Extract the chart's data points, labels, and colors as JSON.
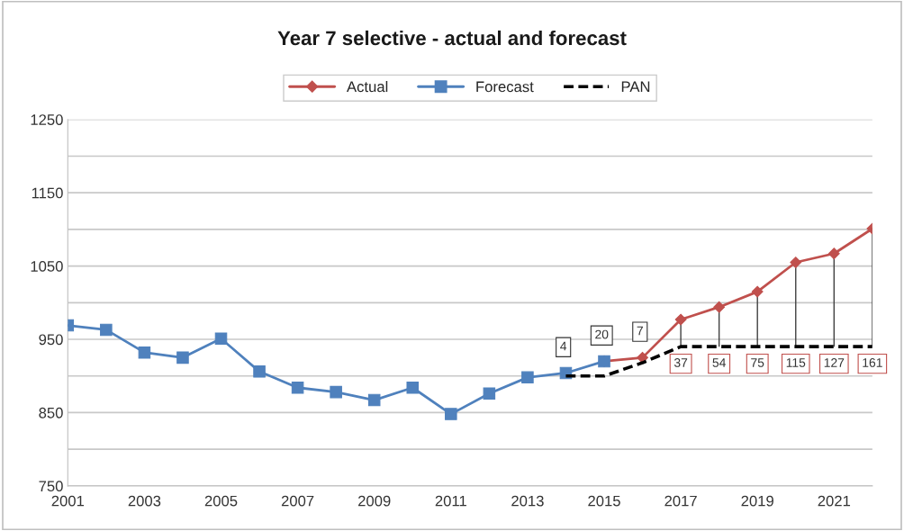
{
  "chart_data": {
    "type": "line",
    "title": "Year 7 selective - actual and forecast",
    "xlim": [
      2001,
      2022
    ],
    "xticks": [
      2001,
      2003,
      2005,
      2007,
      2009,
      2011,
      2013,
      2015,
      2017,
      2019,
      2021
    ],
    "ylim": [
      750,
      1250
    ],
    "yticks": [
      750,
      {
        "value": 800,
        "label": null
      },
      850,
      {
        "value": 900,
        "label": null
      },
      950,
      {
        "value": 1000,
        "label": null
      },
      1050,
      {
        "value": 1100,
        "label": null
      },
      1150,
      {
        "value": 1200,
        "label": null
      },
      1250
    ],
    "grid": "y",
    "legend": "top",
    "series": [
      {
        "name": "Actual",
        "color": "#c0504d",
        "marker": "diamond",
        "line_style": "solid",
        "x": [
          2015,
          2016,
          2017,
          2018,
          2019,
          2020,
          2021,
          2022
        ],
        "values": [
          920,
          925,
          977,
          994,
          1015,
          1055,
          1067,
          1101
        ],
        "errors": [
          null,
          null,
          [
            940,
            977
          ],
          [
            940,
            994
          ],
          [
            940,
            1015
          ],
          [
            940,
            1055
          ],
          [
            940,
            1067
          ],
          [
            940,
            1101
          ]
        ]
      },
      {
        "name": "Forecast",
        "color": "#4f81bd",
        "marker": "square",
        "line_style": "solid",
        "x": [
          2001,
          2002,
          2003,
          2004,
          2005,
          2006,
          2007,
          2008,
          2009,
          2010,
          2011,
          2012,
          2013,
          2014,
          2015
        ],
        "values": [
          969,
          963,
          932,
          925,
          951,
          906,
          884,
          878,
          867,
          884,
          848,
          876,
          898,
          904,
          920
        ]
      },
      {
        "name": "PAN",
        "color": "#000000",
        "marker": "none",
        "line_style": "dashed",
        "x": [
          2014,
          2015,
          2016,
          2017,
          2018,
          2019,
          2020,
          2021,
          2022
        ],
        "values": [
          900,
          900,
          918,
          940,
          940,
          940,
          940,
          940,
          940
        ]
      }
    ],
    "annotations": [
      {
        "text": "4",
        "x": 2014,
        "y": 904
      },
      {
        "text": "20",
        "x": 2015,
        "y": 920
      },
      {
        "text": "7",
        "x": 2016,
        "y": 925
      },
      {
        "text": "37",
        "x": 2017,
        "y": 940
      },
      {
        "text": "54",
        "x": 2018,
        "y": 940
      },
      {
        "text": "75",
        "x": 2019,
        "y": 940
      },
      {
        "text": "115",
        "x": 2020,
        "y": 940
      },
      {
        "text": "127",
        "x": 2021,
        "y": 940
      },
      {
        "text": "161",
        "x": 2022,
        "y": 940
      }
    ]
  }
}
